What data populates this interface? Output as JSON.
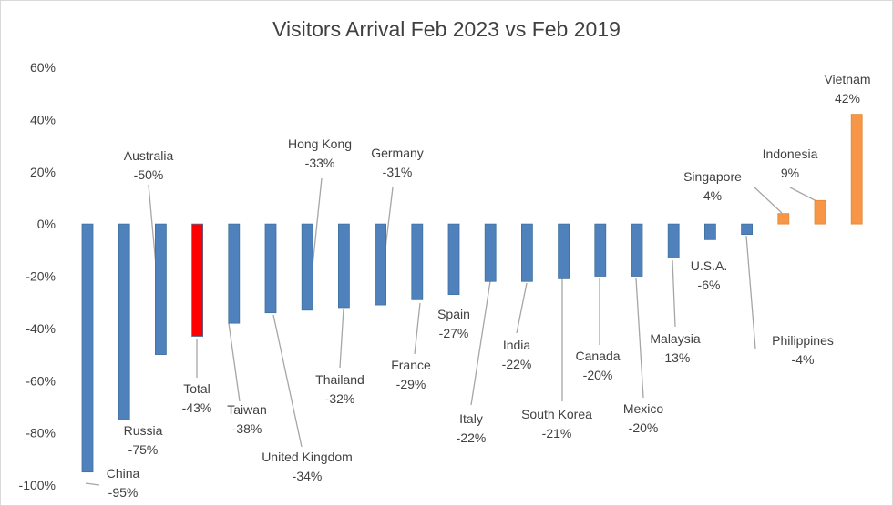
{
  "chart_data": {
    "type": "bar",
    "title": "Visitors Arrival Feb 2023 vs Feb 2019",
    "xlabel": "",
    "ylabel": "",
    "ylim": [
      -100,
      60
    ],
    "yticks": [
      60,
      40,
      20,
      0,
      -20,
      -40,
      -60,
      -80,
      -100
    ],
    "ytick_labels": [
      "60%",
      "40%",
      "20%",
      "0%",
      "-20%",
      "-40%",
      "-60%",
      "-80%",
      "-100%"
    ],
    "grid": false,
    "legend": "none",
    "colors": {
      "default": "#4f81bd",
      "total": "#ff0000",
      "positive": "#f79646"
    },
    "categories": [
      "China",
      "Russia",
      "Australia",
      "Total",
      "Taiwan",
      "United Kingdom",
      "Hong Kong",
      "Thailand",
      "Germany",
      "France",
      "Spain",
      "Italy",
      "India",
      "South Korea",
      "Canada",
      "Mexico",
      "Malaysia",
      "U.S.A.",
      "Philippines",
      "Singapore",
      "Indonesia",
      "Vietnam"
    ],
    "values": [
      -95,
      -75,
      -50,
      -43,
      -38,
      -34,
      -33,
      -32,
      -31,
      -29,
      -27,
      -22,
      -22,
      -21,
      -20,
      -20,
      -13,
      -6,
      -4,
      4,
      9,
      42
    ],
    "value_labels": [
      "-95%",
      "-75%",
      "-50%",
      "-43%",
      "-38%",
      "-34%",
      "-33%",
      "-32%",
      "-31%",
      "-29%",
      "-27%",
      "-22%",
      "-22%",
      "-21%",
      "-20%",
      "-20%",
      "-13%",
      "-6%",
      "-4%",
      "4%",
      "9%",
      "42%"
    ],
    "bar_colors": [
      "default",
      "default",
      "default",
      "total",
      "default",
      "default",
      "default",
      "default",
      "default",
      "default",
      "default",
      "default",
      "default",
      "default",
      "default",
      "default",
      "default",
      "default",
      "default",
      "positive",
      "positive",
      "positive"
    ]
  }
}
